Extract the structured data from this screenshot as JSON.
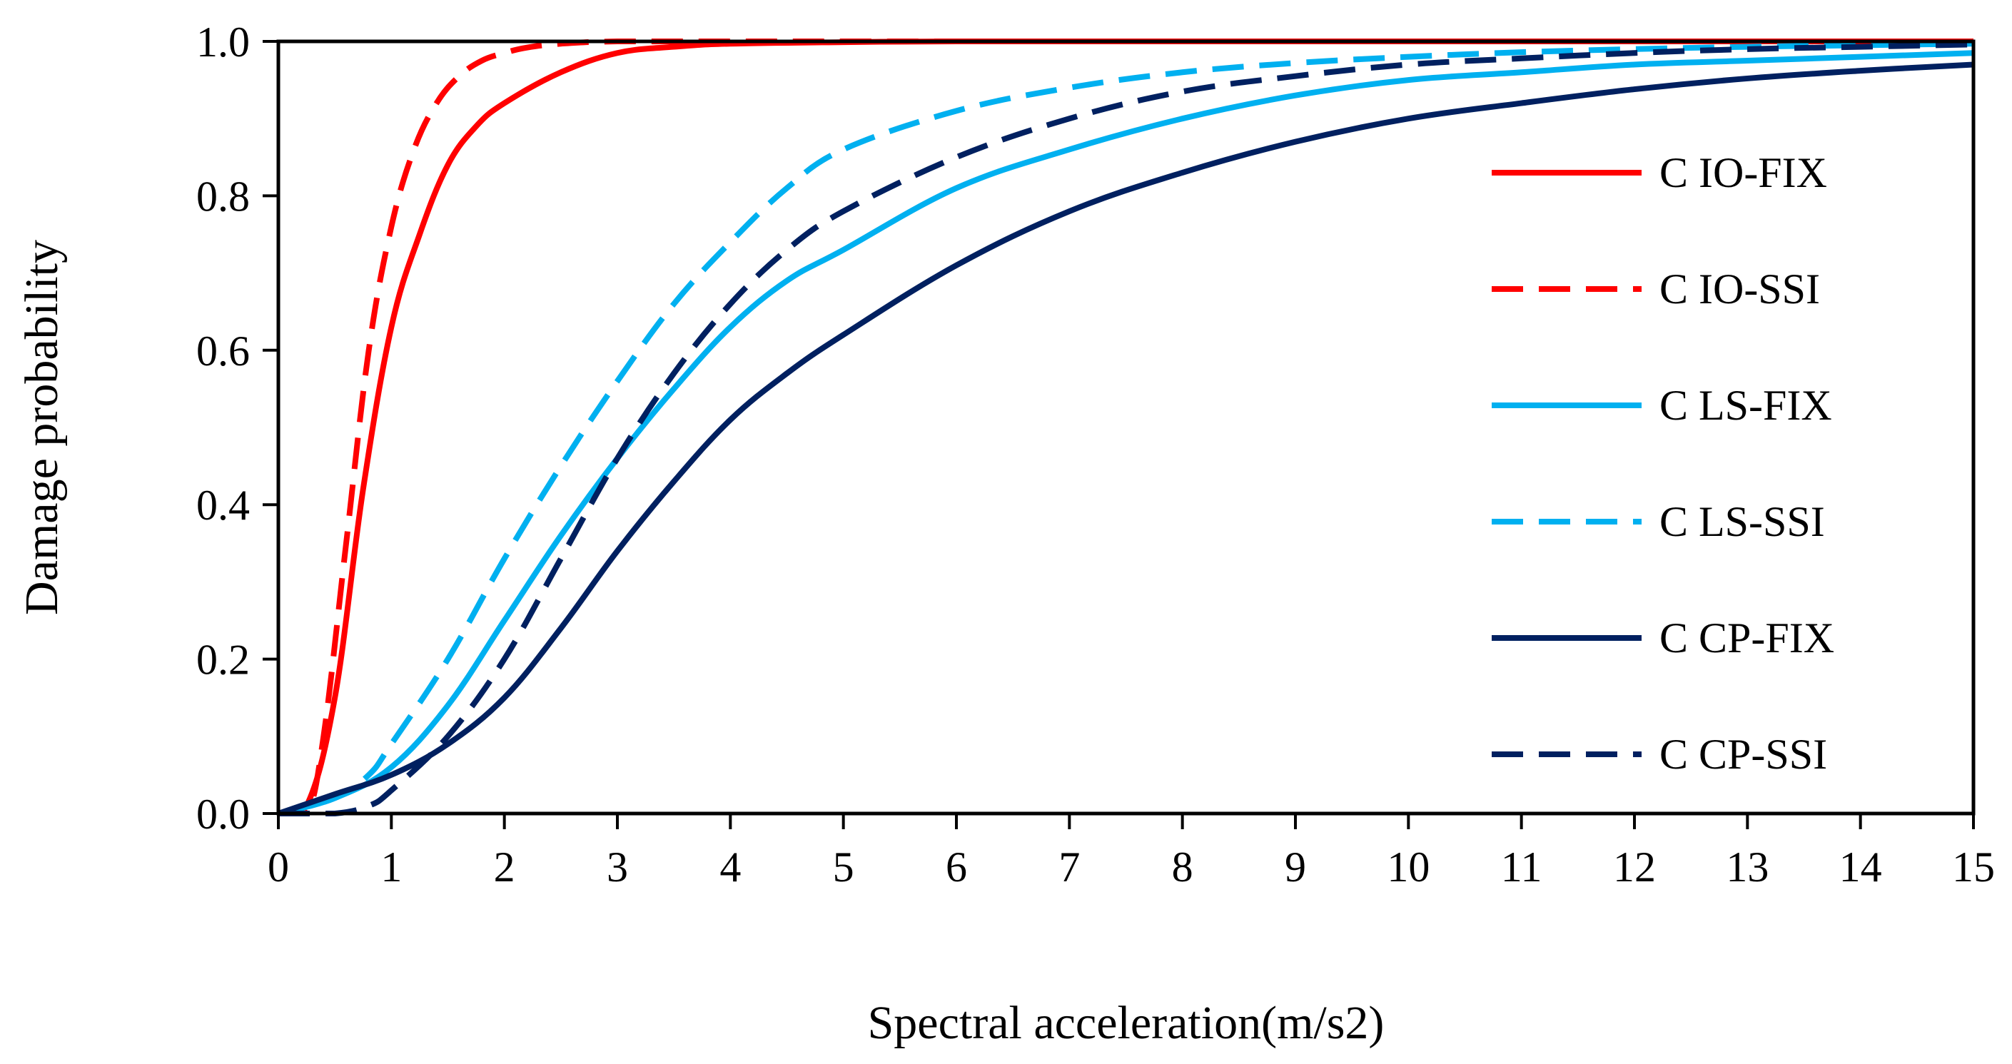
{
  "chart_data": {
    "type": "line",
    "title": "",
    "xlabel": "Spectral acceleration(m/s2)",
    "ylabel": "Damage probability",
    "xlim": [
      0,
      15
    ],
    "ylim": [
      0,
      1
    ],
    "x_ticks": [
      0,
      1,
      2,
      3,
      4,
      5,
      6,
      7,
      8,
      9,
      10,
      11,
      12,
      13,
      14,
      15
    ],
    "x_tick_labels": [
      "0",
      "1",
      "2",
      "3",
      "4",
      "5",
      "6",
      "7",
      "8",
      "9",
      "10",
      "11",
      "12",
      "13",
      "14",
      "15"
    ],
    "y_ticks": [
      0,
      0.2,
      0.4,
      0.6,
      0.8,
      1.0
    ],
    "y_tick_labels": [
      "0.0",
      "0.2",
      "0.4",
      "0.6",
      "0.8",
      "1.0"
    ],
    "grid": false,
    "legend_position": "right",
    "series": [
      {
        "name": "C IO-FIX",
        "color": "#ff0000",
        "dash": "solid",
        "x": [
          0,
          0.25,
          0.5,
          0.75,
          1.0,
          1.25,
          1.5,
          1.75,
          2.0,
          2.5,
          3.0,
          3.5,
          4.0,
          5.0,
          6.0,
          8.0,
          10.0,
          12.0,
          15.0
        ],
        "y": [
          0,
          0.01,
          0.15,
          0.42,
          0.63,
          0.75,
          0.84,
          0.89,
          0.92,
          0.96,
          0.985,
          0.993,
          0.997,
          0.999,
          1.0,
          1.0,
          1.0,
          1.0,
          1.0
        ]
      },
      {
        "name": "C IO-SSI",
        "color": "#ff0000",
        "dash": "dashed",
        "x": [
          0,
          0.25,
          0.4,
          0.6,
          0.8,
          1.0,
          1.2,
          1.4,
          1.6,
          1.8,
          2.0,
          2.2,
          2.5,
          3.0,
          4.0,
          6.0,
          10.0,
          15.0
        ],
        "y": [
          0,
          0.0,
          0.1,
          0.35,
          0.6,
          0.76,
          0.86,
          0.92,
          0.955,
          0.975,
          0.985,
          0.992,
          0.997,
          1.0,
          1.0,
          1.0,
          1.0,
          1.0
        ]
      },
      {
        "name": "C LS-FIX",
        "color": "#00b0f0",
        "dash": "solid",
        "x": [
          0,
          0.5,
          1.0,
          1.5,
          2.0,
          2.5,
          3.0,
          3.5,
          4.0,
          4.5,
          5.0,
          6.0,
          7.0,
          8.0,
          9.0,
          10.0,
          11.0,
          12.0,
          13.0,
          14.0,
          15.0
        ],
        "y": [
          0,
          0.02,
          0.06,
          0.14,
          0.25,
          0.36,
          0.46,
          0.55,
          0.63,
          0.69,
          0.73,
          0.81,
          0.86,
          0.9,
          0.93,
          0.95,
          0.96,
          0.97,
          0.975,
          0.98,
          0.985
        ]
      },
      {
        "name": "C LS-SSI",
        "color": "#00b0f0",
        "dash": "dashed",
        "x": [
          0,
          0.5,
          0.8,
          1.0,
          1.5,
          2.0,
          2.5,
          3.0,
          3.5,
          4.0,
          4.5,
          5.0,
          6.0,
          7.0,
          8.0,
          9.0,
          10.0,
          11.0,
          12.0,
          13.0,
          14.0,
          15.0
        ],
        "y": [
          0,
          0.02,
          0.05,
          0.09,
          0.2,
          0.33,
          0.45,
          0.56,
          0.66,
          0.74,
          0.81,
          0.86,
          0.91,
          0.94,
          0.96,
          0.972,
          0.98,
          0.986,
          0.99,
          0.993,
          0.995,
          0.997
        ]
      },
      {
        "name": "C CP-FIX",
        "color": "#002060",
        "dash": "solid",
        "x": [
          0,
          0.5,
          1.0,
          1.5,
          2.0,
          2.5,
          3.0,
          3.5,
          4.0,
          4.5,
          5.0,
          6.0,
          7.0,
          8.0,
          9.0,
          10.0,
          11.0,
          12.0,
          13.0,
          14.0,
          15.0
        ],
        "y": [
          0,
          0.025,
          0.05,
          0.09,
          0.15,
          0.24,
          0.34,
          0.43,
          0.51,
          0.57,
          0.62,
          0.71,
          0.78,
          0.83,
          0.87,
          0.9,
          0.92,
          0.938,
          0.952,
          0.962,
          0.97
        ]
      },
      {
        "name": "C CP-SSI",
        "color": "#002060",
        "dash": "dashed",
        "x": [
          0,
          0.5,
          0.8,
          1.0,
          1.5,
          2.0,
          2.5,
          3.0,
          3.5,
          4.0,
          4.5,
          5.0,
          6.0,
          7.0,
          8.0,
          9.0,
          10.0,
          11.0,
          12.0,
          13.0,
          14.0,
          15.0
        ],
        "y": [
          0,
          0.0,
          0.01,
          0.03,
          0.1,
          0.2,
          0.33,
          0.46,
          0.57,
          0.66,
          0.73,
          0.78,
          0.85,
          0.9,
          0.935,
          0.955,
          0.97,
          0.978,
          0.985,
          0.99,
          0.993,
          0.996
        ]
      }
    ]
  }
}
